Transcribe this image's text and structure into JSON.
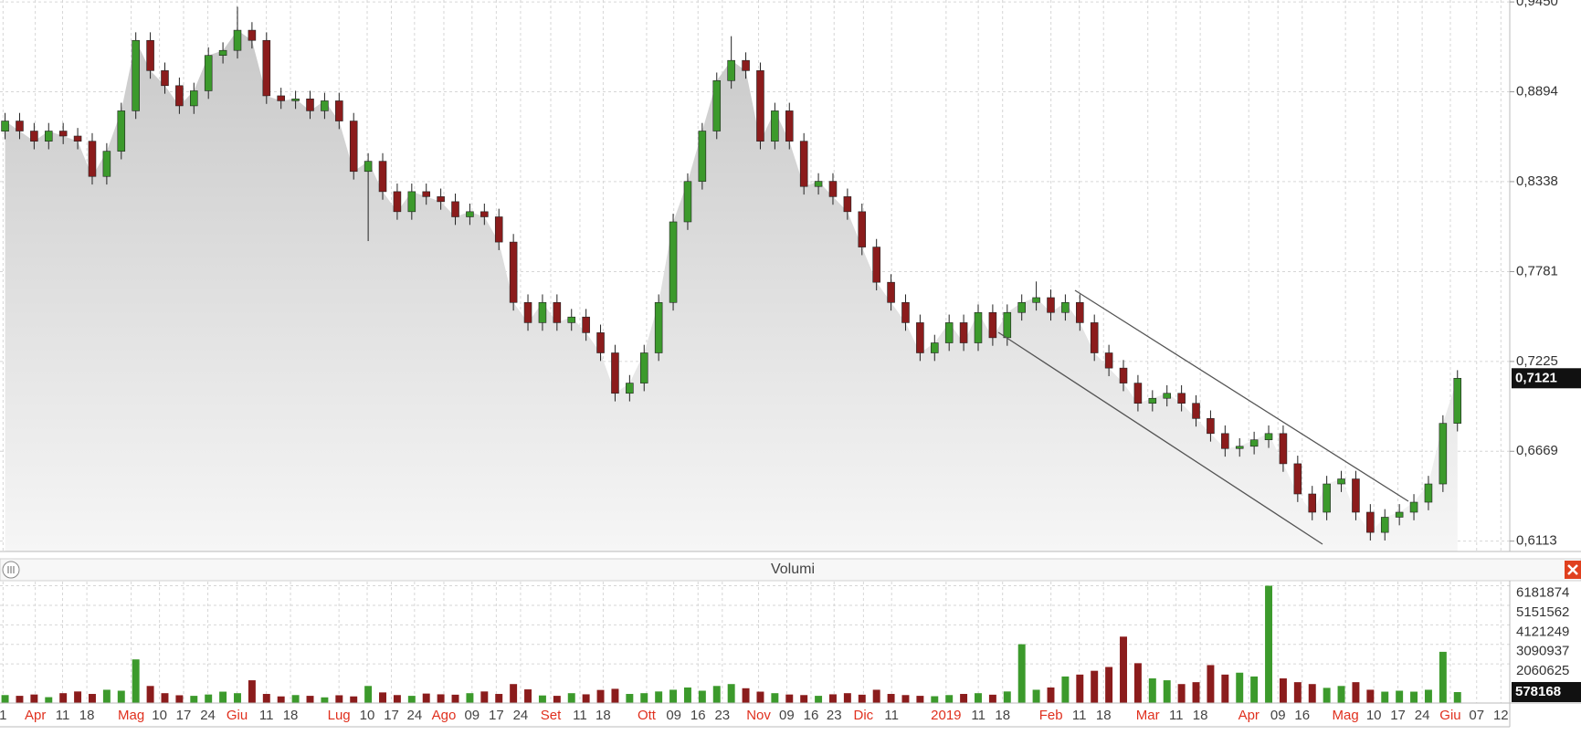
{
  "chart_data": {
    "type": "candlestick",
    "x": [
      0,
      1,
      2,
      3,
      4,
      5,
      6,
      7,
      8,
      9,
      10,
      11,
      12,
      13,
      14,
      15,
      16,
      17,
      18,
      19,
      20,
      21,
      22,
      23,
      24,
      25,
      26,
      27,
      28,
      29,
      30,
      31,
      32,
      33,
      34,
      35,
      36,
      37,
      38,
      39,
      40,
      41,
      42,
      43,
      44,
      45,
      46,
      47,
      48,
      49,
      50,
      51,
      52,
      53,
      54,
      55,
      56,
      57,
      58,
      59,
      60,
      61,
      62,
      63,
      64,
      65,
      66,
      67,
      68,
      69,
      70,
      71,
      72,
      73,
      74,
      75,
      76,
      77,
      78,
      79,
      80,
      81,
      82,
      83,
      84,
      85,
      86,
      87,
      88,
      89,
      90,
      91,
      92,
      93,
      94,
      95,
      96,
      97,
      98,
      99,
      100
    ],
    "open": [
      0.865,
      0.8713,
      0.8651,
      0.8588,
      0.8651,
      0.862,
      0.8588,
      0.837,
      0.8526,
      0.8776,
      0.9212,
      0.9025,
      0.8932,
      0.8807,
      0.89,
      0.9119,
      0.915,
      0.9275,
      0.9212,
      0.8869,
      0.8838,
      0.885,
      0.8776,
      0.8838,
      0.8713,
      0.8401,
      0.8464,
      0.8276,
      0.8152,
      0.8276,
      0.8245,
      0.8214,
      0.812,
      0.8152,
      0.812,
      0.7964,
      0.759,
      0.7465,
      0.759,
      0.7465,
      0.75,
      0.7403,
      0.7278,
      0.7028,
      0.7091,
      0.7278,
      0.759,
      0.8089,
      0.8339,
      0.8651,
      0.8963,
      0.9088,
      0.9025,
      0.8588,
      0.8776,
      0.8588,
      0.8308,
      0.834,
      0.8245,
      0.8152,
      0.7933,
      0.7715,
      0.759,
      0.7465,
      0.7278,
      0.734,
      0.7465,
      0.734,
      0.7528,
      0.7372,
      0.7528,
      0.759,
      0.762,
      0.7528,
      0.759,
      0.7465,
      0.7278,
      0.7184,
      0.7091,
      0.6966,
      0.6997,
      0.7028,
      0.6966,
      0.6872,
      0.6779,
      0.6686,
      0.67,
      0.674,
      0.6779,
      0.6592,
      0.6405,
      0.6292,
      0.6467,
      0.6498,
      0.6292,
      0.6167,
      0.6261,
      0.6292,
      0.6354,
      0.6467,
      0.6842
    ],
    "high": [
      0.8763,
      0.8763,
      0.8701,
      0.8701,
      0.8701,
      0.867,
      0.8638,
      0.8576,
      0.8826,
      0.9262,
      0.9262,
      0.9075,
      0.8982,
      0.895,
      0.9169,
      0.92,
      0.942,
      0.9325,
      0.9262,
      0.8919,
      0.89,
      0.89,
      0.8888,
      0.8888,
      0.8763,
      0.8514,
      0.8514,
      0.8326,
      0.8326,
      0.8326,
      0.8295,
      0.8264,
      0.8202,
      0.8202,
      0.817,
      0.8014,
      0.764,
      0.764,
      0.764,
      0.755,
      0.755,
      0.7453,
      0.7328,
      0.7141,
      0.7328,
      0.764,
      0.8139,
      0.8389,
      0.8701,
      0.9013,
      0.9238,
      0.9138,
      0.9075,
      0.8826,
      0.8826,
      0.8638,
      0.839,
      0.839,
      0.8295,
      0.8202,
      0.7983,
      0.7765,
      0.764,
      0.7515,
      0.739,
      0.7515,
      0.7515,
      0.7578,
      0.7578,
      0.7578,
      0.764,
      0.772,
      0.767,
      0.764,
      0.764,
      0.7515,
      0.7328,
      0.7234,
      0.7141,
      0.7047,
      0.7078,
      0.7078,
      0.7016,
      0.6922,
      0.6829,
      0.675,
      0.679,
      0.6829,
      0.6829,
      0.6642,
      0.6455,
      0.6517,
      0.6548,
      0.6548,
      0.6342,
      0.6311,
      0.6342,
      0.6404,
      0.6517,
      0.6892,
      0.7171
    ],
    "low": [
      0.86,
      0.8601,
      0.8538,
      0.8538,
      0.857,
      0.8538,
      0.832,
      0.832,
      0.8476,
      0.8726,
      0.8975,
      0.8882,
      0.8757,
      0.8757,
      0.885,
      0.9069,
      0.91,
      0.9162,
      0.8819,
      0.8788,
      0.8788,
      0.8726,
      0.8726,
      0.8663,
      0.8351,
      0.797,
      0.8226,
      0.8102,
      0.8102,
      0.8195,
      0.8164,
      0.807,
      0.807,
      0.807,
      0.7914,
      0.754,
      0.7415,
      0.7415,
      0.7415,
      0.7415,
      0.7353,
      0.7228,
      0.6978,
      0.6978,
      0.7041,
      0.7228,
      0.754,
      0.8039,
      0.8289,
      0.8601,
      0.8913,
      0.8975,
      0.8538,
      0.8538,
      0.8538,
      0.8258,
      0.8258,
      0.8195,
      0.8102,
      0.7883,
      0.7665,
      0.754,
      0.7415,
      0.7228,
      0.7228,
      0.729,
      0.729,
      0.729,
      0.7322,
      0.7322,
      0.7478,
      0.754,
      0.7478,
      0.7478,
      0.7415,
      0.7228,
      0.7134,
      0.7041,
      0.6916,
      0.6916,
      0.6947,
      0.6916,
      0.6822,
      0.6729,
      0.6636,
      0.6636,
      0.665,
      0.669,
      0.6542,
      0.6355,
      0.6242,
      0.6242,
      0.6417,
      0.6242,
      0.6117,
      0.6117,
      0.6211,
      0.6242,
      0.6304,
      0.6417,
      0.6792
    ],
    "close": [
      0.8713,
      0.8651,
      0.8588,
      0.8651,
      0.862,
      0.8588,
      0.837,
      0.8526,
      0.8776,
      0.9212,
      0.9025,
      0.8932,
      0.8807,
      0.89,
      0.9119,
      0.915,
      0.9275,
      0.9212,
      0.8869,
      0.8838,
      0.885,
      0.8776,
      0.8838,
      0.8713,
      0.8401,
      0.8464,
      0.8276,
      0.8152,
      0.8276,
      0.8245,
      0.8214,
      0.812,
      0.8152,
      0.812,
      0.7964,
      0.759,
      0.7465,
      0.759,
      0.7465,
      0.75,
      0.7403,
      0.7278,
      0.7028,
      0.7091,
      0.7278,
      0.759,
      0.8089,
      0.8339,
      0.8651,
      0.8963,
      0.9088,
      0.9025,
      0.8588,
      0.8776,
      0.8588,
      0.8308,
      0.834,
      0.8245,
      0.8152,
      0.7933,
      0.7715,
      0.759,
      0.7465,
      0.7278,
      0.734,
      0.7465,
      0.734,
      0.7528,
      0.7372,
      0.7528,
      0.759,
      0.762,
      0.7528,
      0.759,
      0.7465,
      0.7278,
      0.7184,
      0.7091,
      0.6966,
      0.6997,
      0.7028,
      0.6966,
      0.6872,
      0.6779,
      0.6686,
      0.67,
      0.674,
      0.6779,
      0.6592,
      0.6405,
      0.6292,
      0.6467,
      0.6498,
      0.6292,
      0.6167,
      0.6261,
      0.6292,
      0.6354,
      0.6467,
      0.6842,
      0.7121
    ],
    "up_color": "#3c9a2c",
    "down_color": "#8b1c1c",
    "last_price_label": "0,7121",
    "xlim": [
      -0.35,
      103.6
    ],
    "xticks": [
      {
        "value": -0.14,
        "label": "1"
      },
      {
        "value": 2.08,
        "label": "Apr",
        "color": "#e0301e"
      },
      {
        "value": 3.96,
        "label": "11"
      },
      {
        "value": 5.63,
        "label": "18"
      },
      {
        "value": 8.68,
        "label": "Mag",
        "color": "#e0301e"
      },
      {
        "value": 10.63,
        "label": "10"
      },
      {
        "value": 12.29,
        "label": "17"
      },
      {
        "value": 13.96,
        "label": "24"
      },
      {
        "value": 15.97,
        "label": "Giu",
        "color": "#e0301e"
      },
      {
        "value": 17.99,
        "label": "11"
      },
      {
        "value": 19.65,
        "label": "18"
      },
      {
        "value": 22.99,
        "label": "Lug",
        "color": "#e0301e"
      },
      {
        "value": 24.93,
        "label": "10"
      },
      {
        "value": 26.6,
        "label": "17"
      },
      {
        "value": 28.19,
        "label": "24"
      },
      {
        "value": 30.21,
        "label": "Ago",
        "color": "#e0301e"
      },
      {
        "value": 32.15,
        "label": "09"
      },
      {
        "value": 33.82,
        "label": "17"
      },
      {
        "value": 35.49,
        "label": "24"
      },
      {
        "value": 37.57,
        "label": "Set",
        "color": "#e0301e"
      },
      {
        "value": 39.58,
        "label": "11"
      },
      {
        "value": 41.18,
        "label": "18"
      },
      {
        "value": 44.17,
        "label": "Ott",
        "color": "#e0301e"
      },
      {
        "value": 46.04,
        "label": "09"
      },
      {
        "value": 47.71,
        "label": "16"
      },
      {
        "value": 49.38,
        "label": "23"
      },
      {
        "value": 51.88,
        "label": "Nov",
        "color": "#e0301e"
      },
      {
        "value": 53.82,
        "label": "09"
      },
      {
        "value": 55.49,
        "label": "16"
      },
      {
        "value": 57.08,
        "label": "23"
      },
      {
        "value": 59.1,
        "label": "Dic",
        "color": "#e0301e"
      },
      {
        "value": 61.04,
        "label": "11"
      },
      {
        "value": 64.79,
        "label": "2019",
        "color": "#e0301e"
      },
      {
        "value": 67.01,
        "label": "11"
      },
      {
        "value": 68.68,
        "label": "18"
      },
      {
        "value": 72.01,
        "label": "Feb",
        "color": "#e0301e"
      },
      {
        "value": 73.96,
        "label": "11"
      },
      {
        "value": 75.63,
        "label": "18"
      },
      {
        "value": 78.68,
        "label": "Mar",
        "color": "#e0301e"
      },
      {
        "value": 80.63,
        "label": "11"
      },
      {
        "value": 82.29,
        "label": "18"
      },
      {
        "value": 85.63,
        "label": "Apr",
        "color": "#e0301e"
      },
      {
        "value": 87.64,
        "label": "09"
      },
      {
        "value": 89.31,
        "label": "16"
      },
      {
        "value": 92.29,
        "label": "Mag",
        "color": "#e0301e"
      },
      {
        "value": 94.24,
        "label": "10"
      },
      {
        "value": 95.9,
        "label": "17"
      },
      {
        "value": 97.57,
        "label": "24"
      },
      {
        "value": 99.51,
        "label": "Giu",
        "color": "#e0301e"
      },
      {
        "value": 101.32,
        "label": "07"
      },
      {
        "value": 102.99,
        "label": "12"
      }
    ],
    "ylim": [
      0.6049,
      0.9462
    ],
    "yticks": [
      {
        "value": 0.945,
        "label": "0,9450"
      },
      {
        "value": 0.8894,
        "label": "0,8894"
      },
      {
        "value": 0.8338,
        "label": "0,8338"
      },
      {
        "value": 0.7781,
        "label": "0,7781"
      },
      {
        "value": 0.7225,
        "label": "0,7225"
      },
      {
        "value": 0.6669,
        "label": "0,6669"
      },
      {
        "value": 0.6113,
        "label": "0,6113"
      }
    ],
    "grid": true,
    "volume": {
      "title": "Volumi",
      "values": [
        420000,
        380000,
        450000,
        310000,
        520000,
        610000,
        480000,
        700000,
        650000,
        2300000,
        900000,
        520000,
        410000,
        380000,
        450000,
        600000,
        520000,
        1200000,
        480000,
        350000,
        420000,
        380000,
        300000,
        410000,
        350000,
        900000,
        560000,
        420000,
        380000,
        500000,
        460000,
        440000,
        520000,
        610000,
        480000,
        1000000,
        720000,
        400000,
        380000,
        520000,
        460000,
        690000,
        750000,
        480000,
        520000,
        610000,
        700000,
        820000,
        650000,
        900000,
        1000000,
        780000,
        600000,
        520000,
        450000,
        420000,
        380000,
        460000,
        520000,
        440000,
        700000,
        480000,
        420000,
        380000,
        360000,
        420000,
        480000,
        520000,
        440000,
        610000,
        3100000,
        700000,
        820000,
        1400000,
        1500000,
        1700000,
        1900000,
        3500000,
        2100000,
        1300000,
        1200000,
        1000000,
        1100000,
        2000000,
        1500000,
        1600000,
        1400000,
        6181874,
        1300000,
        1100000,
        1000000,
        800000,
        900000,
        1100000,
        700000,
        600000,
        650000,
        600000,
        700000,
        2700000,
        578168
      ],
      "ylim": [
        0,
        6400000
      ],
      "yticks": [
        6181874,
        5151562,
        4121249,
        3090937,
        2060625
      ]
    }
  }
}
